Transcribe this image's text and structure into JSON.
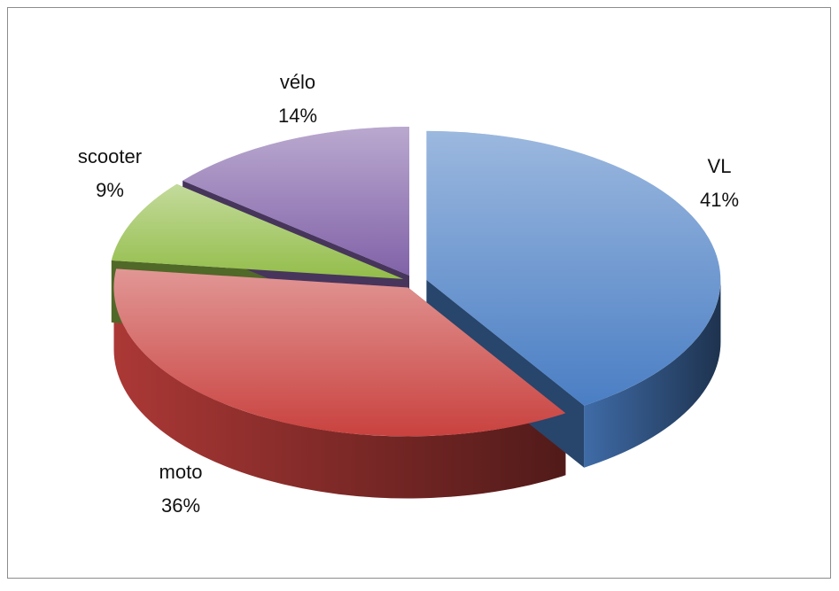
{
  "chart_data": {
    "type": "pie",
    "categories": [
      "VL",
      "moto",
      "scooter",
      "vélo"
    ],
    "values": [
      41,
      36,
      9,
      14
    ],
    "value_labels": [
      "41%",
      "36%",
      "9%",
      "14%"
    ],
    "colors": [
      "#4a7ec4",
      "#c9423f",
      "#93bd4a",
      "#8162a8"
    ]
  }
}
